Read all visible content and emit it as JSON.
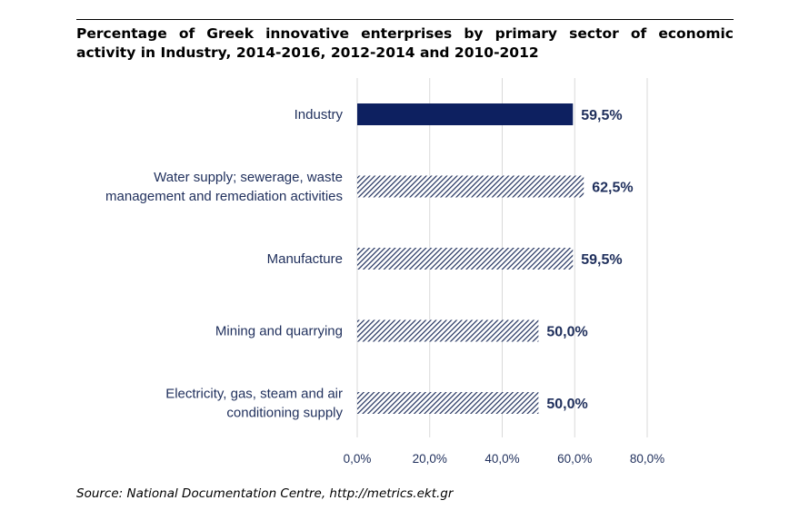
{
  "title": "Percentage of Greek innovative enterprises by primary sector of economic activity in Industry, 2014-2016, 2012-2014 and 2010-2012",
  "source": "Source: National Documentation Centre, http://metrics.ekt.gr",
  "colors": {
    "solid_bar": "#0d2060",
    "hatch": "#1f2f5c",
    "text": "#1f2f5c",
    "grid": "#d9d9d9"
  },
  "chart_data": {
    "type": "bar",
    "orientation": "horizontal",
    "categories": [
      {
        "lines": [
          "Industry"
        ],
        "value": 59.5,
        "value_label": "59,5%",
        "style": "solid"
      },
      {
        "lines": [
          "Water supply; sewerage, waste",
          "management and remediation activities"
        ],
        "value": 62.5,
        "value_label": "62,5%",
        "style": "hatched"
      },
      {
        "lines": [
          "Manufacture"
        ],
        "value": 59.5,
        "value_label": "59,5%",
        "style": "hatched"
      },
      {
        "lines": [
          "Mining and quarrying"
        ],
        "value": 50.0,
        "value_label": "50,0%",
        "style": "hatched"
      },
      {
        "lines": [
          "Electricity, gas, steam and air",
          "conditioning supply"
        ],
        "value": 50.0,
        "value_label": "50,0%",
        "style": "hatched"
      }
    ],
    "xlim": [
      0,
      80
    ],
    "xticks": [
      0,
      20,
      40,
      60,
      80
    ],
    "xtick_labels": [
      "0,0%",
      "20,0%",
      "40,0%",
      "60,0%",
      "80,0%"
    ],
    "grid": true,
    "legend": false
  }
}
